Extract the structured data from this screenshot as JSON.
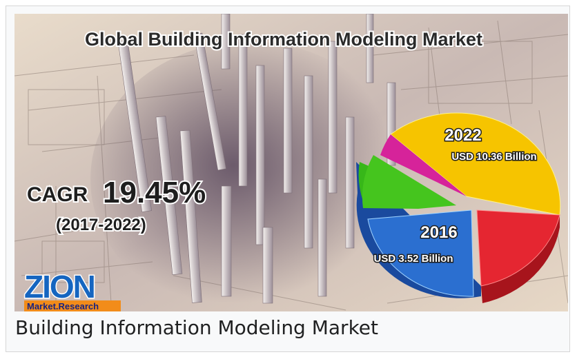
{
  "image": {
    "title": "Global Building Information Modeling Market",
    "cagr_label": "CAGR",
    "cagr_value": "19.45%",
    "cagr_period": "(2017-2022)",
    "pie": [
      {
        "year": "2022",
        "value": "USD 10.36 Billion"
      },
      {
        "year": "2016",
        "value": "USD 3.52 Billion"
      }
    ],
    "logo": {
      "name": "ZION",
      "tagline": "Market.Research"
    }
  },
  "caption": "Building Information Modeling Market"
}
